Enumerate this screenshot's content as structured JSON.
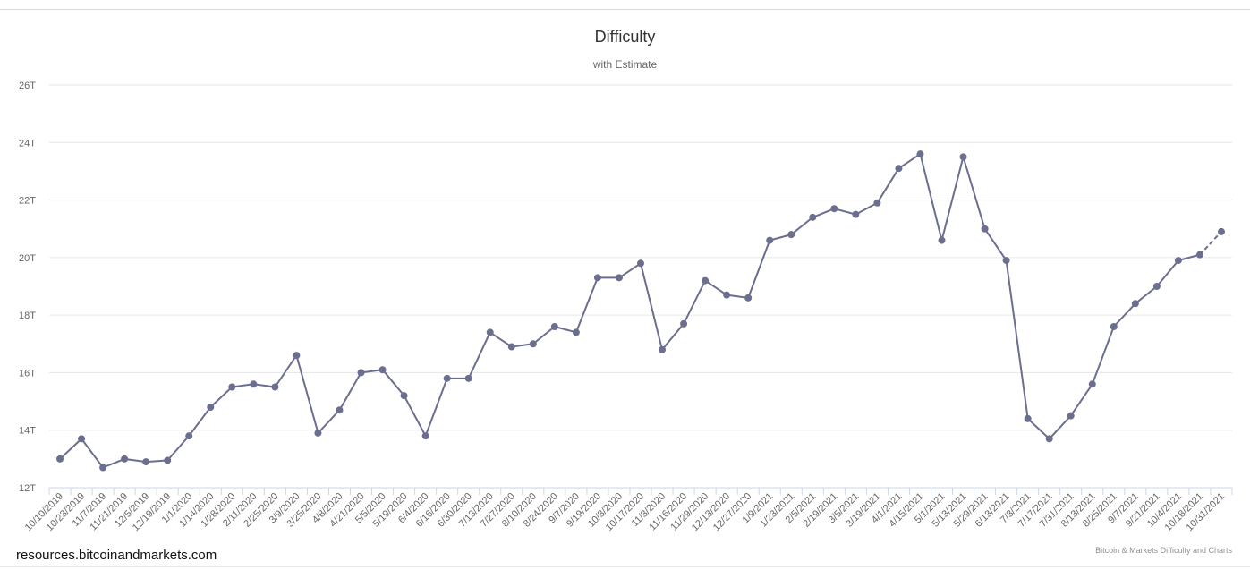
{
  "chart_data": {
    "type": "line",
    "title": "Difficulty",
    "subtitle": "with Estimate",
    "xlabel": "",
    "ylabel": "",
    "ylim": [
      12,
      26
    ],
    "y_ticks": [
      "12T",
      "14T",
      "16T",
      "18T",
      "20T",
      "22T",
      "24T",
      "26T"
    ],
    "y_tick_values": [
      12,
      14,
      16,
      18,
      20,
      22,
      24,
      26
    ],
    "grid": true,
    "legend": "none",
    "categories": [
      "10/10/2019",
      "10/23/2019",
      "11/7/2019",
      "11/21/2019",
      "12/5/2019",
      "12/19/2019",
      "1/1/2020",
      "1/14/2020",
      "1/28/2020",
      "2/11/2020",
      "2/25/2020",
      "3/9/2020",
      "3/25/2020",
      "4/8/2020",
      "4/21/2020",
      "5/5/2020",
      "5/19/2020",
      "6/4/2020",
      "6/16/2020",
      "6/30/2020",
      "7/13/2020",
      "7/27/2020",
      "8/10/2020",
      "8/24/2020",
      "9/7/2020",
      "9/19/2020",
      "10/3/2020",
      "10/17/2020",
      "11/3/2020",
      "11/16/2020",
      "11/29/2020",
      "12/13/2020",
      "12/27/2020",
      "1/9/2021",
      "1/23/2021",
      "2/5/2021",
      "2/19/2021",
      "3/5/2021",
      "3/19/2021",
      "4/1/2021",
      "4/15/2021",
      "5/1/2021",
      "5/13/2021",
      "5/29/2021",
      "6/13/2021",
      "7/3/2021",
      "7/17/2021",
      "7/31/2021",
      "8/13/2021",
      "8/25/2021",
      "9/7/2021",
      "9/21/2021",
      "10/4/2021",
      "10/18/2021",
      "10/31/2021"
    ],
    "series": [
      {
        "color": "#6b6e8f",
        "values": [
          13.0,
          13.7,
          12.7,
          13.0,
          12.9,
          12.95,
          13.8,
          14.8,
          15.5,
          15.6,
          15.5,
          16.6,
          13.9,
          14.7,
          16.0,
          16.1,
          15.2,
          13.8,
          15.8,
          15.8,
          17.4,
          16.9,
          17.0,
          17.6,
          17.4,
          19.3,
          19.3,
          19.8,
          16.8,
          17.7,
          19.2,
          18.7,
          18.6,
          20.6,
          20.8,
          21.4,
          21.7,
          21.5,
          21.9,
          23.1,
          23.6,
          20.6,
          23.5,
          21.0,
          19.9,
          14.4,
          13.7,
          14.5,
          15.6,
          17.6,
          18.4,
          19.0,
          19.9,
          20.1,
          20.9
        ],
        "estimate_last_point": true
      }
    ]
  },
  "credits": "Bitcoin & Markets Difficulty and Charts",
  "watermark": "resources.bitcoinandmarkets.com"
}
